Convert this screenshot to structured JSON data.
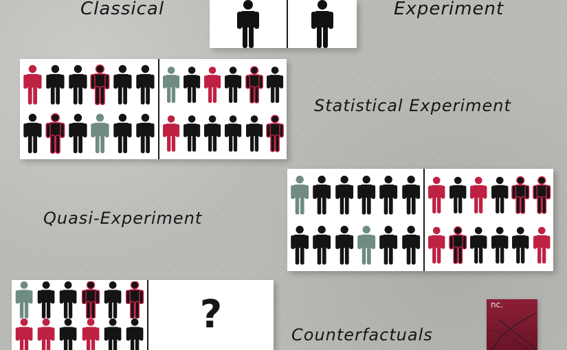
{
  "labels": {
    "classical": "Classical",
    "experiment": "Experiment",
    "statistical": "Statistical Experiment",
    "quasi": "Quasi-Experiment",
    "counterfactuals": "Counterfactuals"
  },
  "question_mark": "?",
  "logo": {
    "text": "nc."
  },
  "colors": {
    "background": "#bdbdba",
    "black": "#141414",
    "red": "#bf2143",
    "gray": "#6f8b84",
    "white": "#ffffff",
    "logo_red": "#7b1830"
  },
  "groups": {
    "statistical_left": [
      "red",
      "black",
      "black",
      "red-black",
      "black",
      "black",
      "black",
      "red-black",
      "black",
      "gray",
      "black",
      "black"
    ],
    "statistical_right": [
      "gray",
      "black",
      "red",
      "black",
      "red-black",
      "black",
      "red",
      "black",
      "black",
      "black",
      "black",
      "red-black"
    ],
    "quasi_left": [
      "gray",
      "black",
      "black",
      "black",
      "black",
      "black",
      "black",
      "black",
      "black",
      "gray",
      "black",
      "black"
    ],
    "quasi_right": [
      "red",
      "black",
      "red",
      "black",
      "red-black",
      "red-black",
      "red",
      "red-black",
      "black",
      "black",
      "black",
      "red"
    ],
    "counter_left": [
      "gray",
      "black",
      "black",
      "red-black",
      "black",
      "red-black",
      "red",
      "red",
      "black",
      "red",
      "black",
      "black"
    ]
  }
}
